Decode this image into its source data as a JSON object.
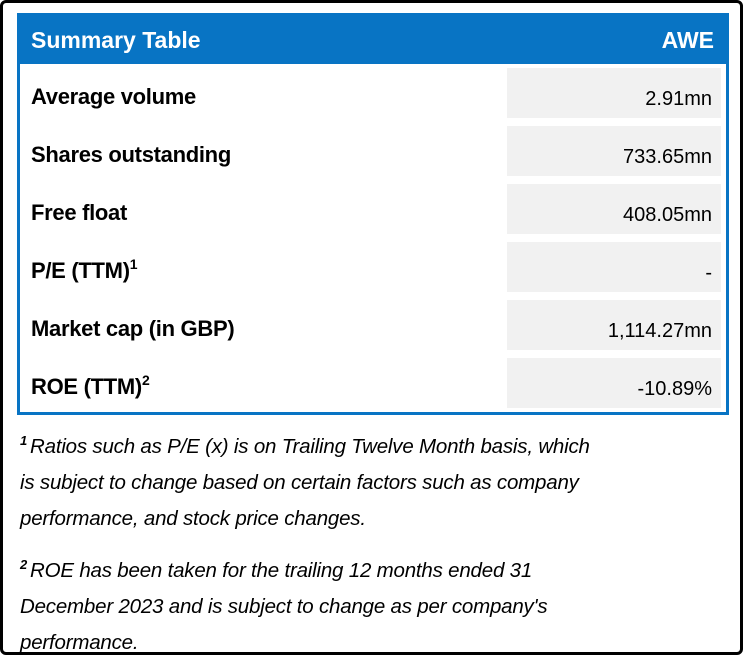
{
  "table": {
    "title": "Summary Table",
    "ticker": "AWE",
    "rows": [
      {
        "label": "Average volume",
        "value": "2.91mn"
      },
      {
        "label": "Shares outstanding",
        "value": "733.65mn"
      },
      {
        "label": "Free float",
        "value": "408.05mn"
      },
      {
        "label": "P/E (TTM)",
        "sup": "1",
        "value": "-"
      },
      {
        "label": "Market cap (in GBP)",
        "value": "1,114.27mn"
      },
      {
        "label": "ROE (TTM)",
        "sup": "2",
        "value": "-10.89%"
      }
    ]
  },
  "footnotes": [
    {
      "marker": "1",
      "lines": [
        "Ratios such as P/E (x) is on Trailing Twelve Month basis, which",
        "is subject to change based on certain factors such as company",
        "performance, and stock price changes."
      ]
    },
    {
      "marker": "2",
      "lines": [
        "ROE has been taken for the trailing 12 months ended 31",
        "December 2023 and is subject to change as per company's",
        "performance."
      ]
    }
  ],
  "colors": {
    "header_bg": "#0874C4",
    "border_blue": "#0874C4",
    "value_cell_bg": "#F1F1F1",
    "frame": "#000000"
  }
}
